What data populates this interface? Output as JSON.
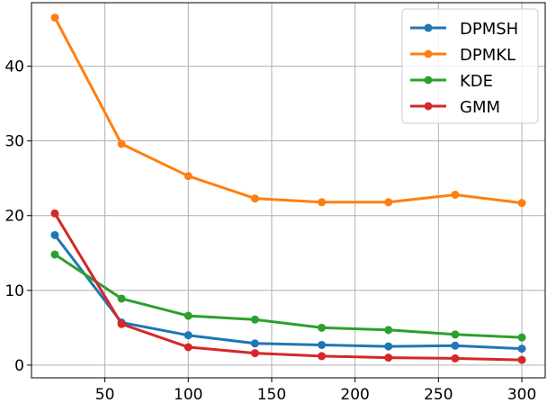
{
  "chart_data": {
    "type": "line",
    "title": "",
    "xlabel": "",
    "ylabel": "",
    "x": [
      20,
      60,
      100,
      140,
      180,
      220,
      260,
      300
    ],
    "xlim": [
      6,
      314
    ],
    "ylim": [
      -1.7,
      48.5
    ],
    "xticks": [
      50,
      100,
      150,
      200,
      250,
      300
    ],
    "yticks": [
      0,
      10,
      20,
      30,
      40
    ],
    "grid": true,
    "legend_position": "top-right",
    "series": [
      {
        "name": "DPMSH",
        "color": "#1f77b4",
        "values": [
          17.4,
          5.7,
          4.0,
          2.9,
          2.7,
          2.5,
          2.6,
          2.2
        ]
      },
      {
        "name": "DPMKL",
        "color": "#ff7f0e",
        "values": [
          46.5,
          29.6,
          25.3,
          22.3,
          21.8,
          21.8,
          22.8,
          21.7
        ]
      },
      {
        "name": "KDE",
        "color": "#2ca02c",
        "values": [
          14.8,
          8.9,
          6.6,
          6.1,
          5.0,
          4.7,
          4.1,
          3.7
        ]
      },
      {
        "name": "GMM",
        "color": "#d62728",
        "values": [
          20.3,
          5.5,
          2.4,
          1.6,
          1.2,
          1.0,
          0.9,
          0.7
        ]
      }
    ]
  }
}
